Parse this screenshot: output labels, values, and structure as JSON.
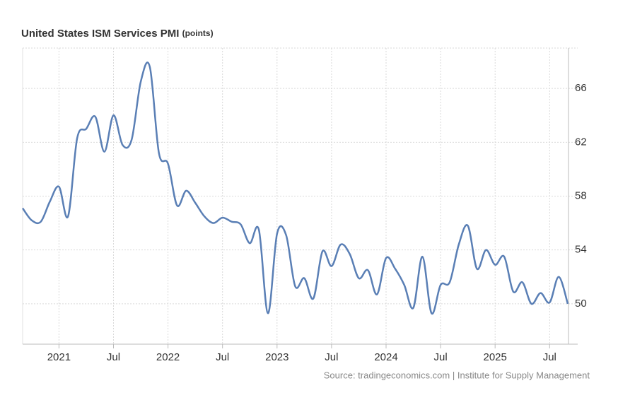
{
  "chart_data": {
    "type": "line",
    "title": "United States ISM Services PMI",
    "unit": "(points)",
    "source": "Source: tradingeconomics.com | Institute for Supply Management",
    "x": [
      "2020-09",
      "2020-10",
      "2020-11",
      "2020-12",
      "2021-01",
      "2021-02",
      "2021-03",
      "2021-04",
      "2021-05",
      "2021-06",
      "2021-07",
      "2021-08",
      "2021-09",
      "2021-10",
      "2021-11",
      "2021-12",
      "2022-01",
      "2022-02",
      "2022-03",
      "2022-04",
      "2022-05",
      "2022-06",
      "2022-07",
      "2022-08",
      "2022-09",
      "2022-10",
      "2022-11",
      "2022-12",
      "2023-01",
      "2023-02",
      "2023-03",
      "2023-04",
      "2023-05",
      "2023-06",
      "2023-07",
      "2023-08",
      "2023-09",
      "2023-10",
      "2023-11",
      "2023-12",
      "2024-01",
      "2024-02",
      "2024-03",
      "2024-04",
      "2024-05",
      "2024-06",
      "2024-07",
      "2024-08",
      "2024-09",
      "2024-10",
      "2024-11",
      "2024-12",
      "2025-01",
      "2025-02",
      "2025-03",
      "2025-04",
      "2025-05",
      "2025-06",
      "2025-07",
      "2025-08",
      "2025-09"
    ],
    "series": [
      {
        "name": "ISM Services PMI",
        "color": "#5a7fb5",
        "values": [
          57.1,
          56.2,
          56.1,
          57.6,
          58.7,
          56.5,
          62.3,
          63.0,
          63.9,
          61.3,
          64.0,
          61.8,
          62.2,
          66.5,
          67.6,
          61.2,
          60.4,
          57.3,
          58.4,
          57.5,
          56.5,
          56.0,
          56.4,
          56.1,
          55.9,
          54.5,
          55.5,
          49.3,
          55.2,
          55.1,
          51.3,
          51.9,
          50.4,
          53.9,
          52.8,
          54.4,
          53.7,
          51.9,
          52.5,
          50.7,
          53.4,
          52.6,
          51.4,
          49.7,
          53.5,
          49.3,
          51.4,
          51.6,
          54.4,
          55.8,
          52.6,
          54.0,
          52.9,
          53.5,
          50.9,
          51.6,
          50.0,
          50.8,
          50.1,
          52.0,
          50.0
        ]
      }
    ],
    "xlim": [
      "2020-09",
      "2025-09"
    ],
    "xticks": [
      {
        "value": "2021-01",
        "label": "2021"
      },
      {
        "value": "2021-07",
        "label": "Jul"
      },
      {
        "value": "2022-01",
        "label": "2022"
      },
      {
        "value": "2022-07",
        "label": "Jul"
      },
      {
        "value": "2023-01",
        "label": "2023"
      },
      {
        "value": "2023-07",
        "label": "Jul"
      },
      {
        "value": "2024-01",
        "label": "2024"
      },
      {
        "value": "2024-07",
        "label": "Jul"
      },
      {
        "value": "2025-01",
        "label": "2025"
      },
      {
        "value": "2025-07",
        "label": "Jul"
      }
    ],
    "ylim": [
      47,
      69
    ],
    "yticks": [
      50,
      54,
      58,
      62,
      66
    ],
    "grid": true
  }
}
